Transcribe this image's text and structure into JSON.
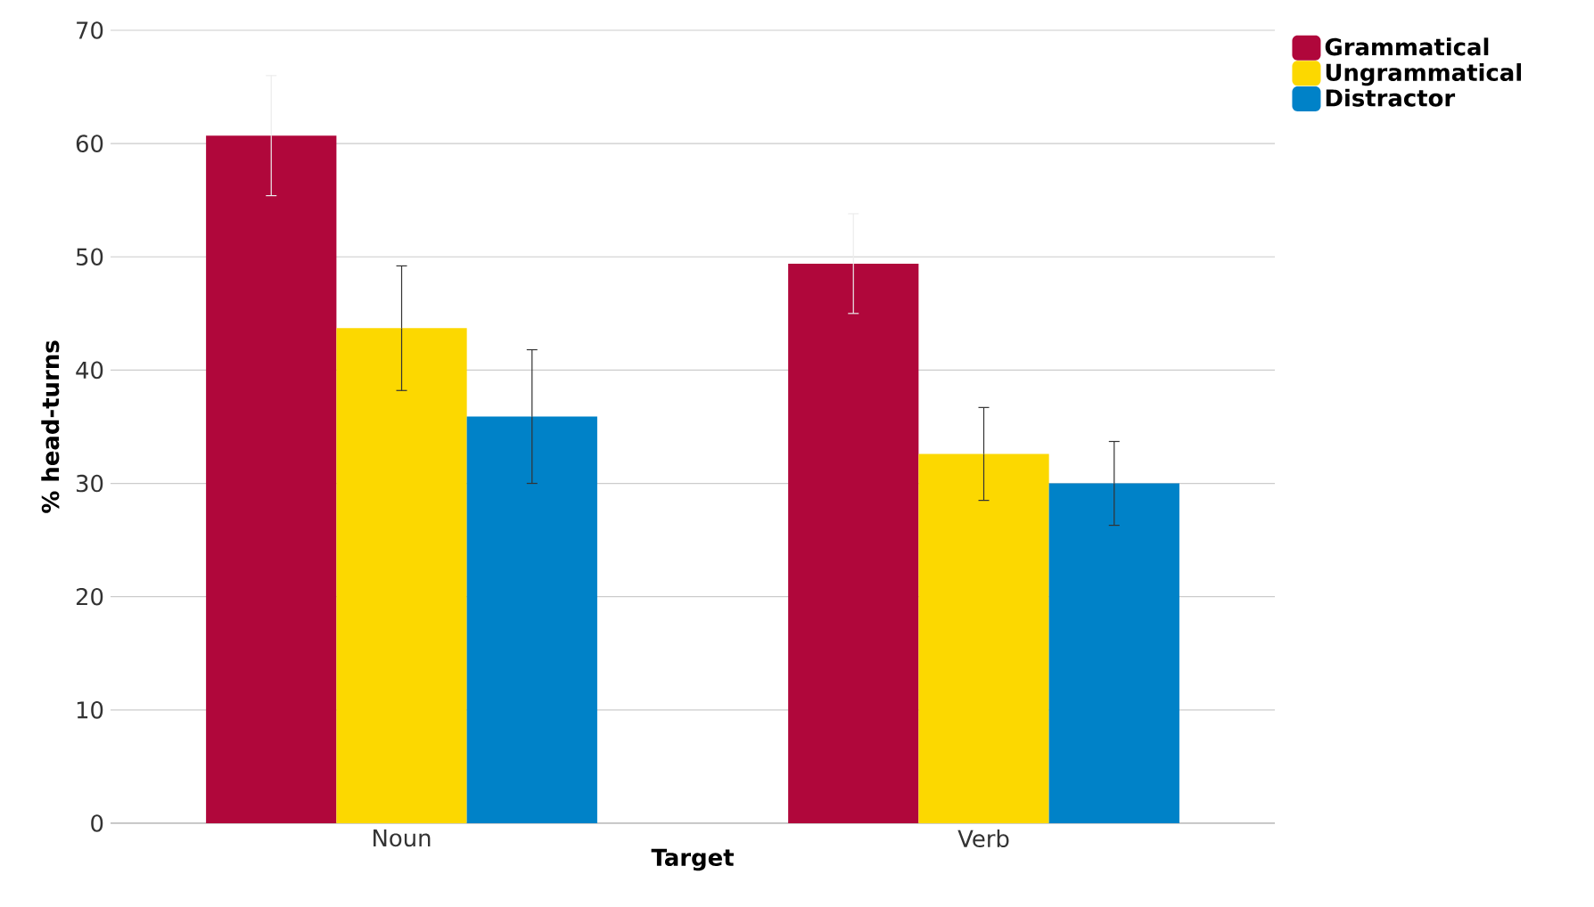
{
  "chart_data": {
    "type": "bar",
    "xlabel": "Target",
    "ylabel": "% head-turns",
    "categories": [
      "Noun",
      "Verb"
    ],
    "series": [
      {
        "name": "Grammatical",
        "color": "#b0073b",
        "values": [
          60.7,
          49.4
        ],
        "errors": [
          5.3,
          4.4
        ]
      },
      {
        "name": "Ungrammatical",
        "color": "#fcd800",
        "values": [
          43.7,
          32.6
        ],
        "errors": [
          5.5,
          4.1
        ]
      },
      {
        "name": "Distractor",
        "color": "#0082c8",
        "values": [
          35.9,
          30.0
        ],
        "errors": [
          5.9,
          3.7
        ]
      }
    ],
    "ylim": [
      0,
      70
    ],
    "yticks": [
      0,
      10,
      20,
      30,
      40,
      50,
      60,
      70
    ],
    "grid": "y",
    "legend": "top right"
  }
}
